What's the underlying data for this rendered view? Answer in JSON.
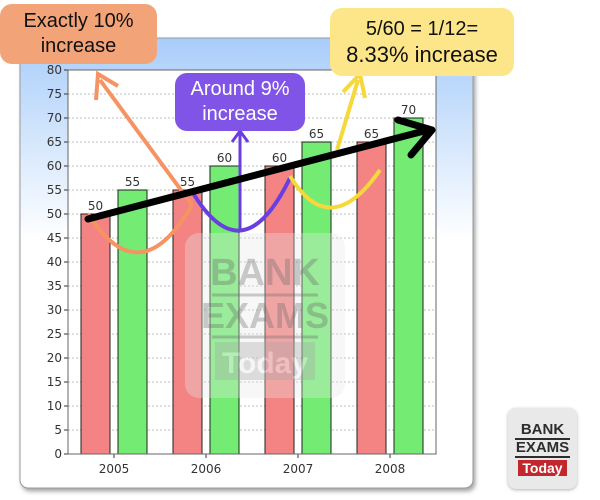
{
  "chart_data": {
    "type": "bar",
    "categories": [
      "2005",
      "2006",
      "2007",
      "2008"
    ],
    "series": [
      {
        "values": [
          50,
          55,
          60,
          65
        ],
        "color": "#f48484"
      },
      {
        "values": [
          55,
          60,
          65,
          70
        ],
        "color": "#74ec74"
      }
    ],
    "ylim": [
      0,
      80
    ],
    "yticks": [
      0,
      5,
      10,
      15,
      20,
      25,
      30,
      35,
      40,
      45,
      50,
      55,
      60,
      65,
      70,
      75,
      80
    ],
    "grid": "horizontal-dotted",
    "title": "",
    "xlabel": "",
    "ylabel": "",
    "annotations": [
      {
        "line1": "Exactly 10%",
        "line2": "increase",
        "color": "#f2a377"
      },
      {
        "line1": "Around 9%",
        "line2": "increase",
        "color": "#8054e6"
      },
      {
        "line1": "5/60 =  1/12=",
        "line2": "8.33% increase",
        "color": "#fde68a"
      }
    ]
  },
  "watermark": {
    "line1": "BANK",
    "line2": "EXAMS",
    "line3": "Today"
  },
  "logo": {
    "line1": "BANK",
    "line2": "EXAMS",
    "line3": "Today"
  }
}
